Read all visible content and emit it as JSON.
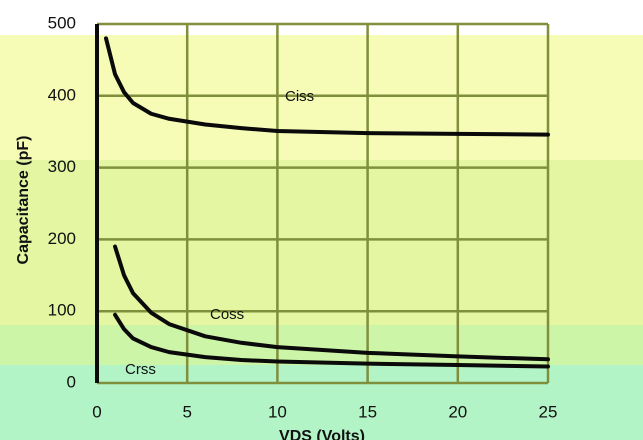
{
  "chart_data": {
    "type": "line",
    "y_label": "Capacitance (pF)",
    "x_label": "VDS (Volts)",
    "x": [
      0.5,
      1,
      1.5,
      2,
      3,
      4,
      6,
      8,
      10,
      15,
      20,
      25
    ],
    "series": [
      {
        "name": "Ciss",
        "color": "#0a0a0a",
        "values": [
          480,
          430,
          405,
          390,
          375,
          368,
          360,
          355,
          351,
          348,
          347,
          346
        ]
      },
      {
        "name": "Coss",
        "color": "#0a0a0a",
        "values": [
          null,
          190,
          150,
          125,
          98,
          82,
          65,
          56,
          50,
          42,
          37,
          33
        ]
      },
      {
        "name": "Crss",
        "color": "#0a0a0a",
        "values": [
          null,
          95,
          75,
          62,
          50,
          43,
          36,
          32,
          30,
          27,
          25,
          23
        ]
      }
    ],
    "xlim": [
      0,
      25
    ],
    "xticks": [
      0,
      5,
      10,
      15,
      20,
      25
    ],
    "ylim": [
      0,
      500
    ],
    "yticks": [
      0,
      100,
      200,
      300,
      400,
      500
    ],
    "grid": true
  }
}
